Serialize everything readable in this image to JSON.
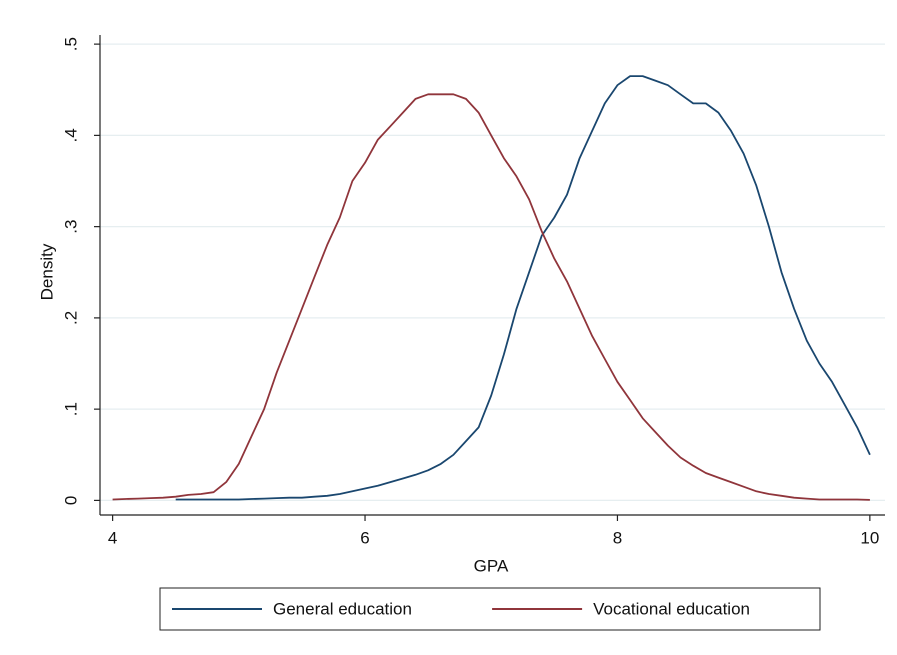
{
  "chart_data": {
    "type": "line",
    "x_label": "GPA",
    "y_label": "Density",
    "x": [
      4.0,
      4.1,
      4.2,
      4.3,
      4.4,
      4.5,
      4.6,
      4.7,
      4.8,
      4.9,
      5.0,
      5.1,
      5.2,
      5.3,
      5.4,
      5.5,
      5.6,
      5.7,
      5.8,
      5.9,
      6.0,
      6.1,
      6.2,
      6.3,
      6.4,
      6.5,
      6.6,
      6.7,
      6.8,
      6.9,
      7.0,
      7.1,
      7.2,
      7.3,
      7.4,
      7.5,
      7.6,
      7.7,
      7.8,
      7.9,
      8.0,
      8.1,
      8.2,
      8.3,
      8.4,
      8.5,
      8.6,
      8.7,
      8.8,
      8.9,
      9.0,
      9.1,
      9.2,
      9.3,
      9.4,
      9.5,
      9.6,
      9.7,
      9.8,
      9.9,
      10.0
    ],
    "series": [
      {
        "name": "General education",
        "color": "#1a476f",
        "values": [
          null,
          null,
          null,
          null,
          null,
          0.001,
          0.001,
          0.001,
          0.001,
          0.001,
          0.001,
          0.0015,
          0.002,
          0.0025,
          0.003,
          0.003,
          0.004,
          0.005,
          0.007,
          0.01,
          0.013,
          0.016,
          0.02,
          0.024,
          0.028,
          0.033,
          0.04,
          0.05,
          0.065,
          0.08,
          0.115,
          0.16,
          0.21,
          0.25,
          0.29,
          0.31,
          0.335,
          0.375,
          0.405,
          0.435,
          0.455,
          0.465,
          0.465,
          0.46,
          0.455,
          0.445,
          0.435,
          0.435,
          0.425,
          0.405,
          0.38,
          0.345,
          0.3,
          0.25,
          0.21,
          0.175,
          0.15,
          0.13,
          0.105,
          0.08,
          0.05
        ]
      },
      {
        "name": "Vocational education",
        "color": "#90353b",
        "values": [
          0.001,
          0.0015,
          0.002,
          0.0025,
          0.003,
          0.004,
          0.006,
          0.007,
          0.009,
          0.02,
          0.04,
          0.07,
          0.1,
          0.14,
          0.175,
          0.21,
          0.245,
          0.28,
          0.31,
          0.35,
          0.37,
          0.395,
          0.41,
          0.425,
          0.44,
          0.445,
          0.445,
          0.445,
          0.44,
          0.425,
          0.4,
          0.375,
          0.355,
          0.33,
          0.295,
          0.265,
          0.24,
          0.21,
          0.18,
          0.155,
          0.13,
          0.11,
          0.09,
          0.075,
          0.06,
          0.047,
          0.038,
          0.03,
          0.025,
          0.02,
          0.015,
          0.01,
          0.007,
          0.005,
          0.003,
          0.002,
          0.001,
          0.001,
          0.001,
          0.001,
          0.0005
        ]
      }
    ],
    "xlim": [
      3.9,
      10.12
    ],
    "xticks": [
      4,
      6,
      8,
      10
    ],
    "ylim": [
      -0.016,
      0.51
    ],
    "yticks": [
      0,
      {
        "value": 0.1,
        "label": ".1"
      },
      {
        "value": 0.2,
        "label": ".2"
      },
      {
        "value": 0.3,
        "label": ".3"
      },
      {
        "value": 0.4,
        "label": ".4"
      },
      {
        "value": 0.5,
        "label": ".5"
      }
    ],
    "grid": true,
    "legend": "bottom"
  }
}
